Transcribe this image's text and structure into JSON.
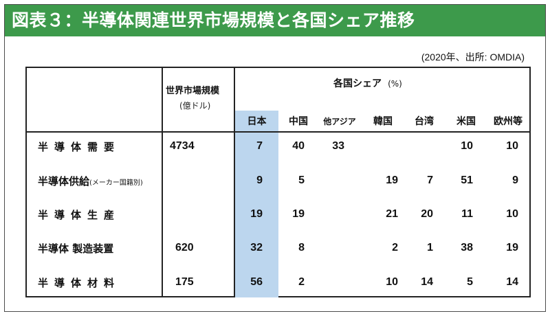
{
  "title": "図表３：半導体関連世界市場規模と各国シェア推移",
  "source": "(2020年、出所: OMDIA)",
  "header": {
    "market_size": "世界市場規模",
    "market_size_unit": "(億ドル)",
    "share": "各国シェア",
    "share_unit": "(%)"
  },
  "columns": [
    "日本",
    "中国",
    "他アジア",
    "韓国",
    "台湾",
    "米国",
    "欧州等"
  ],
  "rows": [
    {
      "label": "半導体需要",
      "note": "",
      "market": "4734",
      "shares": [
        "7",
        "40",
        "33",
        "",
        "",
        "10",
        "10"
      ]
    },
    {
      "label": "半導体供給",
      "note": "(メーカー国籍別)",
      "market": "",
      "shares": [
        "9",
        "5",
        "",
        "19",
        "7",
        "51",
        "9"
      ]
    },
    {
      "label": "半導体生産",
      "note": "",
      "market": "",
      "shares": [
        "19",
        "19",
        "",
        "21",
        "20",
        "11",
        "10"
      ]
    },
    {
      "label": "半導体 製造装置",
      "note": "",
      "market": "620",
      "shares": [
        "32",
        "8",
        "",
        "2",
        "1",
        "38",
        "19"
      ]
    },
    {
      "label": "半導体材料",
      "note": "",
      "market": "175",
      "shares": [
        "56",
        "2",
        "",
        "10",
        "14",
        "5",
        "14"
      ]
    }
  ],
  "colors": {
    "title_bg": "#3d9a4b",
    "highlight": "#bcd6ee"
  }
}
